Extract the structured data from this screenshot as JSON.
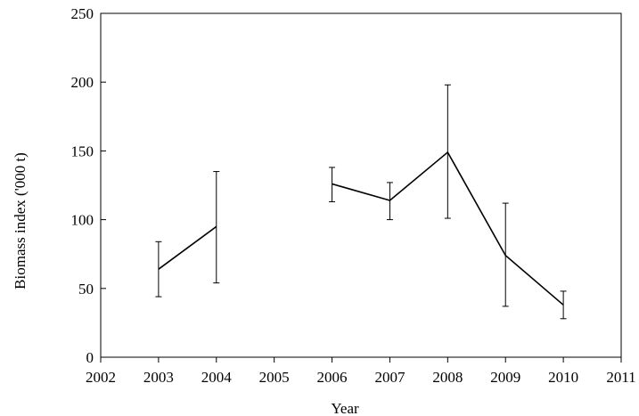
{
  "chart_data": {
    "type": "line",
    "title": "",
    "xlabel": "Year",
    "ylabel": "Biomass index ('000 t)",
    "xlim": [
      2002,
      2011
    ],
    "ylim": [
      0,
      250
    ],
    "xticks": [
      2002,
      2003,
      2004,
      2005,
      2006,
      2007,
      2008,
      2009,
      2010,
      2011
    ],
    "yticks": [
      0,
      50,
      100,
      150,
      200,
      250
    ],
    "grid": false,
    "legend": "none",
    "line_color": "#000000",
    "segments": [
      {
        "points": [
          {
            "x": 2003,
            "y": 64,
            "lo": 44,
            "hi": 84
          },
          {
            "x": 2004,
            "y": 95,
            "lo": 54,
            "hi": 135
          }
        ]
      },
      {
        "points": [
          {
            "x": 2006,
            "y": 126,
            "lo": 113,
            "hi": 138
          },
          {
            "x": 2007,
            "y": 114,
            "lo": 100,
            "hi": 127
          },
          {
            "x": 2008,
            "y": 149,
            "lo": 101,
            "hi": 198
          },
          {
            "x": 2009,
            "y": 74,
            "lo": 37,
            "hi": 112
          },
          {
            "x": 2010,
            "y": 38,
            "lo": 28,
            "hi": 48
          }
        ]
      }
    ]
  }
}
